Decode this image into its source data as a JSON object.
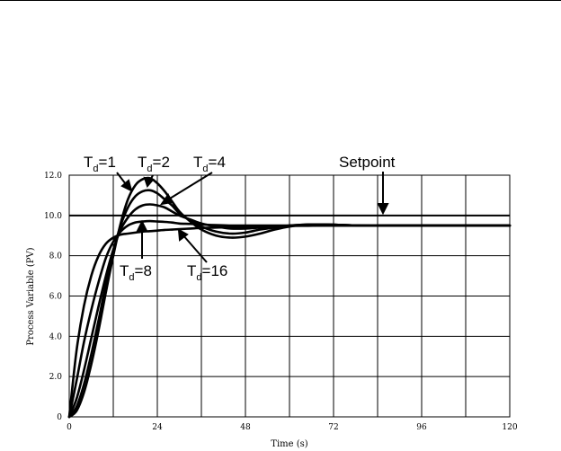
{
  "chart_data": {
    "type": "line",
    "title": "",
    "xlabel": "Time (s)",
    "ylabel": "Process Variable (PV)",
    "xlim": [
      0,
      120
    ],
    "ylim": [
      0,
      12
    ],
    "x_ticks": [
      0,
      12,
      24,
      36,
      48,
      60,
      72,
      84,
      96,
      108,
      120
    ],
    "x_tick_labels": [
      "0",
      "24",
      "48",
      "72",
      "96",
      "120"
    ],
    "y_ticks": [
      0,
      2,
      4,
      6,
      8,
      10,
      12
    ],
    "y_tick_labels": [
      "0",
      "2.0",
      "4.0",
      "6.0",
      "8.0",
      "10.0",
      "12.0"
    ],
    "grid": true,
    "setpoint": {
      "label": "Setpoint",
      "value": 10.0
    },
    "series": [
      {
        "name": "Td=1",
        "x": [
          0,
          2,
          4,
          6,
          8,
          10,
          12,
          14,
          16,
          18,
          20,
          22,
          24,
          26,
          28,
          30,
          33,
          36,
          40,
          44,
          48,
          52,
          56,
          60,
          65,
          70,
          80,
          90,
          100,
          120
        ],
        "y": [
          0,
          0.3,
          1.2,
          2.6,
          4.3,
          6.2,
          8.0,
          9.6,
          10.8,
          11.5,
          11.8,
          11.85,
          11.6,
          11.2,
          10.7,
          10.2,
          9.7,
          9.3,
          9.0,
          8.9,
          8.95,
          9.1,
          9.3,
          9.45,
          9.55,
          9.55,
          9.5,
          9.5,
          9.5,
          9.5
        ]
      },
      {
        "name": "Td=2",
        "x": [
          0,
          2,
          4,
          6,
          8,
          10,
          12,
          14,
          16,
          18,
          20,
          22,
          24,
          26,
          28,
          30,
          33,
          36,
          40,
          44,
          48,
          52,
          56,
          60,
          65,
          70,
          80,
          90,
          100,
          120
        ],
        "y": [
          0,
          0.5,
          1.6,
          3.1,
          4.8,
          6.6,
          8.2,
          9.5,
          10.4,
          10.95,
          11.2,
          11.25,
          11.1,
          10.8,
          10.5,
          10.1,
          9.75,
          9.45,
          9.2,
          9.1,
          9.15,
          9.3,
          9.4,
          9.5,
          9.55,
          9.55,
          9.5,
          9.5,
          9.5,
          9.5
        ]
      },
      {
        "name": "Td=4",
        "x": [
          0,
          2,
          4,
          6,
          8,
          10,
          12,
          14,
          16,
          18,
          20,
          22,
          24,
          26,
          28,
          30,
          33,
          36,
          40,
          44,
          48,
          52,
          56,
          60,
          65,
          70,
          80,
          90,
          100,
          120
        ],
        "y": [
          0,
          0.9,
          2.3,
          3.9,
          5.5,
          7.0,
          8.3,
          9.3,
          9.9,
          10.3,
          10.5,
          10.55,
          10.5,
          10.4,
          10.2,
          10.0,
          9.8,
          9.6,
          9.45,
          9.35,
          9.35,
          9.4,
          9.45,
          9.5,
          9.55,
          9.55,
          9.5,
          9.5,
          9.5,
          9.5
        ]
      },
      {
        "name": "Td=8",
        "x": [
          0,
          2,
          4,
          6,
          8,
          10,
          12,
          14,
          16,
          18,
          20,
          22,
          24,
          26,
          28,
          30,
          33,
          36,
          40,
          44,
          48,
          52,
          56,
          60,
          65,
          70,
          80,
          90,
          100,
          120
        ],
        "y": [
          0,
          1.8,
          3.7,
          5.3,
          6.7,
          7.9,
          8.7,
          9.2,
          9.5,
          9.65,
          9.7,
          9.72,
          9.7,
          9.68,
          9.65,
          9.6,
          9.58,
          9.55,
          9.52,
          9.5,
          9.5,
          9.5,
          9.5,
          9.5,
          9.5,
          9.5,
          9.5,
          9.5,
          9.5,
          9.5
        ]
      },
      {
        "name": "Td=16",
        "x": [
          0,
          2,
          4,
          6,
          8,
          10,
          12,
          14,
          16,
          18,
          20,
          22,
          24,
          26,
          28,
          30,
          33,
          36,
          40,
          44,
          48,
          52,
          56,
          60,
          65,
          70,
          80,
          90,
          100,
          120
        ],
        "y": [
          0,
          3.3,
          5.5,
          7.0,
          8.0,
          8.6,
          8.9,
          9.05,
          9.1,
          9.15,
          9.2,
          9.22,
          9.25,
          9.28,
          9.3,
          9.32,
          9.35,
          9.38,
          9.4,
          9.42,
          9.45,
          9.46,
          9.47,
          9.48,
          9.49,
          9.5,
          9.5,
          9.5,
          9.5,
          9.5
        ]
      }
    ],
    "annotations": [
      {
        "base": "T",
        "sub": "d",
        "tail": "=1",
        "x": 20,
        "y": 11.7
      },
      {
        "base": "T",
        "sub": "d",
        "tail": "=2",
        "x": 24,
        "y": 11.8
      },
      {
        "base": "T",
        "sub": "d",
        "tail": "=4",
        "x": 28,
        "y": 10.5
      },
      {
        "base": "T",
        "sub": "d",
        "tail": "=8",
        "x": 21,
        "y": 9.6
      },
      {
        "base": "T",
        "sub": "d",
        "tail": "=16",
        "x": 31,
        "y": 9.3
      }
    ]
  }
}
